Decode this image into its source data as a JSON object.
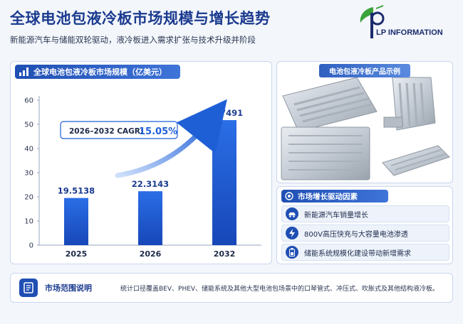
{
  "header": {
    "title": "全球电池包液冷板市场规模与增长趋势",
    "subtitle": "新能源汽车与储能双轮驱动，液冷板进入需求扩张与技术升级并阶段"
  },
  "logo": {
    "text": "LP INFORMATION",
    "colors": {
      "green": "#3aa33a",
      "navy": "#1a2b6d"
    }
  },
  "chart_panel": {
    "title": "全球电池包液冷板市场规模（亿美元）",
    "icon": "bar-chart-icon"
  },
  "chart_data": {
    "type": "bar",
    "title": "全球电池包液冷板市场规模（亿美元）",
    "categories": [
      "2025",
      "2026",
      "2032"
    ],
    "values": [
      19.5138,
      22.3143,
      51.7491
    ],
    "value_labels": [
      "19.5138",
      "22.3143",
      "51.7491"
    ],
    "yticks": [
      "0",
      "10",
      "20",
      "30",
      "40",
      "50",
      "60"
    ],
    "ylim": [
      0,
      60
    ],
    "grid": false,
    "annotation": {
      "label": "2026–2032 CAGR:",
      "value": "15.05%"
    },
    "bar_color": "#1f5fd6"
  },
  "product_panel": {
    "title": "电池包液冷板产品示例"
  },
  "drivers": {
    "title": "市场增长驱动因素",
    "items": [
      {
        "label": "新能源汽车销量增长",
        "icon": "car-icon"
      },
      {
        "label": "800V高压快充与大容量电池渗透",
        "icon": "lightning-icon"
      },
      {
        "label": "储能系统规模化建设带动新增需求",
        "icon": "battery-icon"
      }
    ]
  },
  "scope": {
    "title": "市场范围说明",
    "icon": "document-icon",
    "text": "统计口径覆盖BEV、PHEV、储能系统及其他大型电池包场景中的口琴管式、冲压式、吹胀式及其他结构液冷板。"
  }
}
